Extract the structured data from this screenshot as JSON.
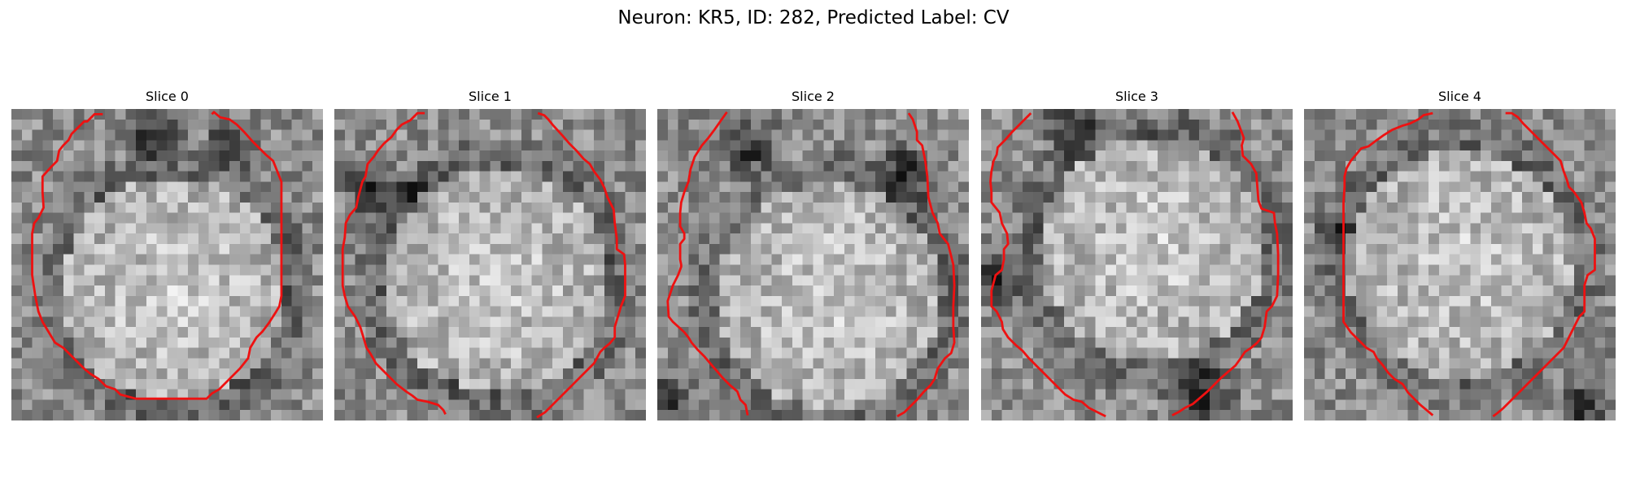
{
  "figure": {
    "title": "Neuron: KR5, ID: 282, Predicted Label: CV"
  },
  "panels": [
    {
      "title": "Slice 0",
      "seed": 11,
      "bright": [
        0.52,
        0.58
      ],
      "dark_blobs": [
        [
          0.7,
          0.12,
          0.1
        ],
        [
          0.45,
          0.08,
          0.12
        ]
      ]
    },
    {
      "title": "Slice 1",
      "seed": 23,
      "bright": [
        0.52,
        0.55
      ],
      "dark_blobs": [
        [
          0.12,
          0.25,
          0.12
        ],
        [
          0.25,
          0.28,
          0.08
        ]
      ]
    },
    {
      "title": "Slice 2",
      "seed": 37,
      "bright": [
        0.55,
        0.6
      ],
      "dark_blobs": [
        [
          0.3,
          0.12,
          0.12
        ],
        [
          0.8,
          0.2,
          0.12
        ],
        [
          0.05,
          0.92,
          0.08
        ]
      ]
    },
    {
      "title": "Slice 3",
      "seed": 41,
      "bright": [
        0.55,
        0.45
      ],
      "dark_blobs": [
        [
          0.3,
          0.05,
          0.12
        ],
        [
          0.7,
          0.92,
          0.14
        ],
        [
          0.05,
          0.55,
          0.1
        ]
      ]
    },
    {
      "title": "Slice 4",
      "seed": 53,
      "bright": [
        0.5,
        0.5
      ],
      "dark_blobs": [
        [
          0.9,
          0.95,
          0.1
        ],
        [
          0.1,
          0.4,
          0.08
        ]
      ]
    }
  ],
  "colors": {
    "contour": "#ee1111",
    "background": "#ffffff"
  }
}
